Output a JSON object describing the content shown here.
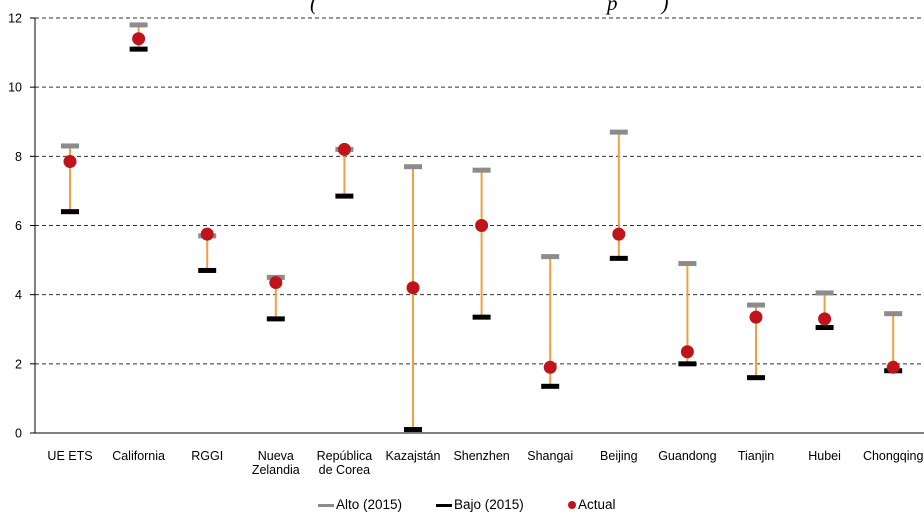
{
  "chart_data": {
    "type": "scatter",
    "title": "(",
    "title_tail": "p",
    "title_end": ")",
    "categories": [
      "UE ETS",
      "California",
      "RGGI",
      "Nueva\nZelandia",
      "República\nde Corea",
      "Kazajstán",
      "Shenzhen",
      "Shangai",
      "Beijing",
      "Guandong",
      "Tianjin",
      "Hubei",
      "Chongqing"
    ],
    "series": [
      {
        "name": "Alto (2015)",
        "color": "#8c8c8c",
        "values": [
          8.3,
          11.8,
          5.7,
          4.5,
          8.2,
          7.7,
          7.6,
          5.1,
          8.7,
          4.9,
          3.7,
          4.05,
          3.45
        ]
      },
      {
        "name": "Bajo (2015)",
        "color": "#000000",
        "values": [
          6.4,
          11.1,
          4.7,
          3.3,
          6.85,
          0.1,
          3.35,
          1.35,
          5.05,
          2.0,
          1.6,
          3.05,
          1.8
        ]
      },
      {
        "name": "Actual",
        "color": "#c0141c",
        "values": [
          7.85,
          11.4,
          5.75,
          4.35,
          8.2,
          4.2,
          6.0,
          1.9,
          5.75,
          2.35,
          3.35,
          3.3,
          1.9
        ]
      }
    ],
    "range_line_color": "#f0a040",
    "yticks": [
      0,
      2,
      4,
      6,
      8,
      10,
      12
    ],
    "ylim": [
      0,
      12
    ],
    "grid": "horizontal-dashed",
    "legend": "bottom-center"
  }
}
